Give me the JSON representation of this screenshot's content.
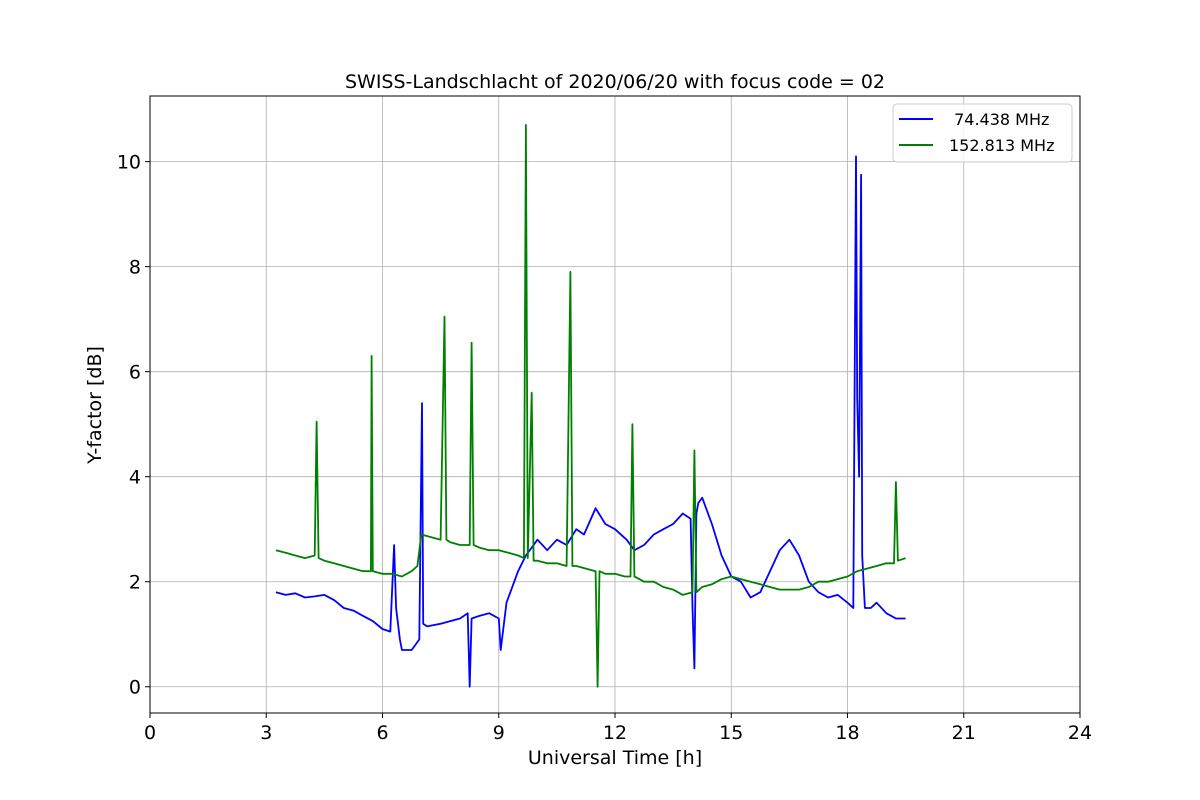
{
  "chart_data": {
    "type": "line",
    "title": "SWISS-Landschlacht of 2020/06/20 with focus code = 02",
    "xlabel": "Universal Time [h]",
    "ylabel": "Y-factor [dB]",
    "xlim": [
      0,
      24
    ],
    "ylim": [
      -0.5,
      11.25
    ],
    "xticks": [
      0,
      3,
      6,
      9,
      12,
      15,
      18,
      21,
      24
    ],
    "xtick_labels": [
      "0",
      "3",
      "6",
      "9",
      "12",
      "15",
      "18",
      "21",
      "24"
    ],
    "yticks": [
      0,
      2,
      4,
      6,
      8,
      10
    ],
    "ytick_labels": [
      "0",
      "2",
      "4",
      "6",
      "8",
      "10"
    ],
    "grid": true,
    "legend_position": "top-right",
    "series": [
      {
        "name": " 74.438 MHz",
        "color": "#0000ff",
        "x": [
          3.25,
          3.5,
          3.75,
          4.0,
          4.25,
          4.5,
          4.75,
          5.0,
          5.25,
          5.5,
          5.75,
          6.0,
          6.2,
          6.3,
          6.35,
          6.45,
          6.5,
          6.75,
          6.95,
          7.02,
          7.05,
          7.15,
          7.5,
          7.75,
          8.0,
          8.2,
          8.25,
          8.3,
          8.5,
          8.75,
          9.0,
          9.05,
          9.2,
          9.5,
          9.7,
          10.0,
          10.25,
          10.5,
          10.75,
          11.0,
          11.2,
          11.5,
          11.75,
          12.0,
          12.3,
          12.5,
          12.75,
          13.0,
          13.25,
          13.5,
          13.75,
          13.95,
          14.0,
          14.05,
          14.1,
          14.15,
          14.25,
          14.5,
          14.75,
          15.0,
          15.25,
          15.5,
          15.75,
          16.0,
          16.25,
          16.5,
          16.75,
          17.0,
          17.25,
          17.5,
          17.75,
          18.0,
          18.15,
          18.22,
          18.25,
          18.3,
          18.35,
          18.38,
          18.45,
          18.6,
          18.75,
          19.0,
          19.25,
          19.5
        ],
        "y": [
          1.8,
          1.75,
          1.78,
          1.7,
          1.72,
          1.75,
          1.65,
          1.5,
          1.45,
          1.35,
          1.25,
          1.1,
          1.05,
          2.7,
          1.5,
          0.9,
          0.7,
          0.7,
          0.9,
          5.4,
          1.2,
          1.15,
          1.2,
          1.25,
          1.3,
          1.4,
          0.0,
          1.3,
          1.35,
          1.4,
          1.3,
          0.7,
          1.6,
          2.2,
          2.5,
          2.8,
          2.6,
          2.8,
          2.7,
          3.0,
          2.9,
          3.4,
          3.1,
          3.0,
          2.8,
          2.6,
          2.7,
          2.9,
          3.0,
          3.1,
          3.3,
          3.2,
          1.5,
          0.35,
          3.3,
          3.5,
          3.6,
          3.1,
          2.5,
          2.1,
          2.0,
          1.7,
          1.8,
          2.2,
          2.6,
          2.8,
          2.5,
          2.0,
          1.8,
          1.7,
          1.75,
          1.6,
          1.5,
          10.1,
          5.5,
          4.0,
          9.75,
          2.5,
          1.5,
          1.5,
          1.6,
          1.4,
          1.3,
          1.3
        ]
      },
      {
        "name": "152.813 MHz",
        "color": "#008000",
        "x": [
          3.25,
          3.5,
          3.75,
          4.0,
          4.25,
          4.3,
          4.35,
          4.5,
          4.75,
          5.0,
          5.25,
          5.5,
          5.7,
          5.72,
          5.75,
          6.0,
          6.25,
          6.5,
          6.75,
          6.9,
          7.0,
          7.25,
          7.5,
          7.6,
          7.65,
          7.75,
          8.0,
          8.25,
          8.3,
          8.35,
          8.5,
          8.75,
          9.0,
          9.25,
          9.5,
          9.65,
          9.7,
          9.75,
          9.85,
          9.9,
          10.0,
          10.25,
          10.5,
          10.75,
          10.85,
          10.9,
          11.0,
          11.25,
          11.5,
          11.55,
          11.6,
          11.75,
          12.0,
          12.25,
          12.4,
          12.45,
          12.5,
          12.75,
          13.0,
          13.25,
          13.5,
          13.75,
          14.0,
          14.05,
          14.1,
          14.25,
          14.5,
          14.75,
          15.0,
          15.25,
          15.5,
          15.75,
          16.0,
          16.25,
          16.5,
          16.75,
          17.0,
          17.25,
          17.5,
          17.75,
          18.0,
          18.25,
          18.5,
          18.75,
          19.0,
          19.2,
          19.25,
          19.3,
          19.5
        ],
        "y": [
          2.6,
          2.55,
          2.5,
          2.45,
          2.5,
          5.05,
          2.45,
          2.4,
          2.35,
          2.3,
          2.25,
          2.2,
          2.2,
          6.3,
          2.2,
          2.15,
          2.15,
          2.1,
          2.2,
          2.3,
          2.9,
          2.85,
          2.8,
          7.05,
          2.8,
          2.75,
          2.7,
          2.7,
          6.55,
          2.7,
          2.65,
          2.6,
          2.6,
          2.55,
          2.5,
          2.45,
          10.7,
          2.45,
          5.6,
          2.4,
          2.4,
          2.35,
          2.35,
          2.3,
          7.9,
          2.3,
          2.3,
          2.25,
          2.2,
          0.0,
          2.2,
          2.15,
          2.15,
          2.1,
          2.1,
          5.0,
          2.1,
          2.0,
          2.0,
          1.9,
          1.85,
          1.75,
          1.8,
          4.5,
          1.8,
          1.9,
          1.95,
          2.05,
          2.1,
          2.05,
          2.0,
          1.95,
          1.9,
          1.85,
          1.85,
          1.85,
          1.9,
          2.0,
          2.0,
          2.05,
          2.1,
          2.2,
          2.25,
          2.3,
          2.35,
          2.35,
          3.9,
          2.4,
          2.45
        ]
      }
    ]
  }
}
